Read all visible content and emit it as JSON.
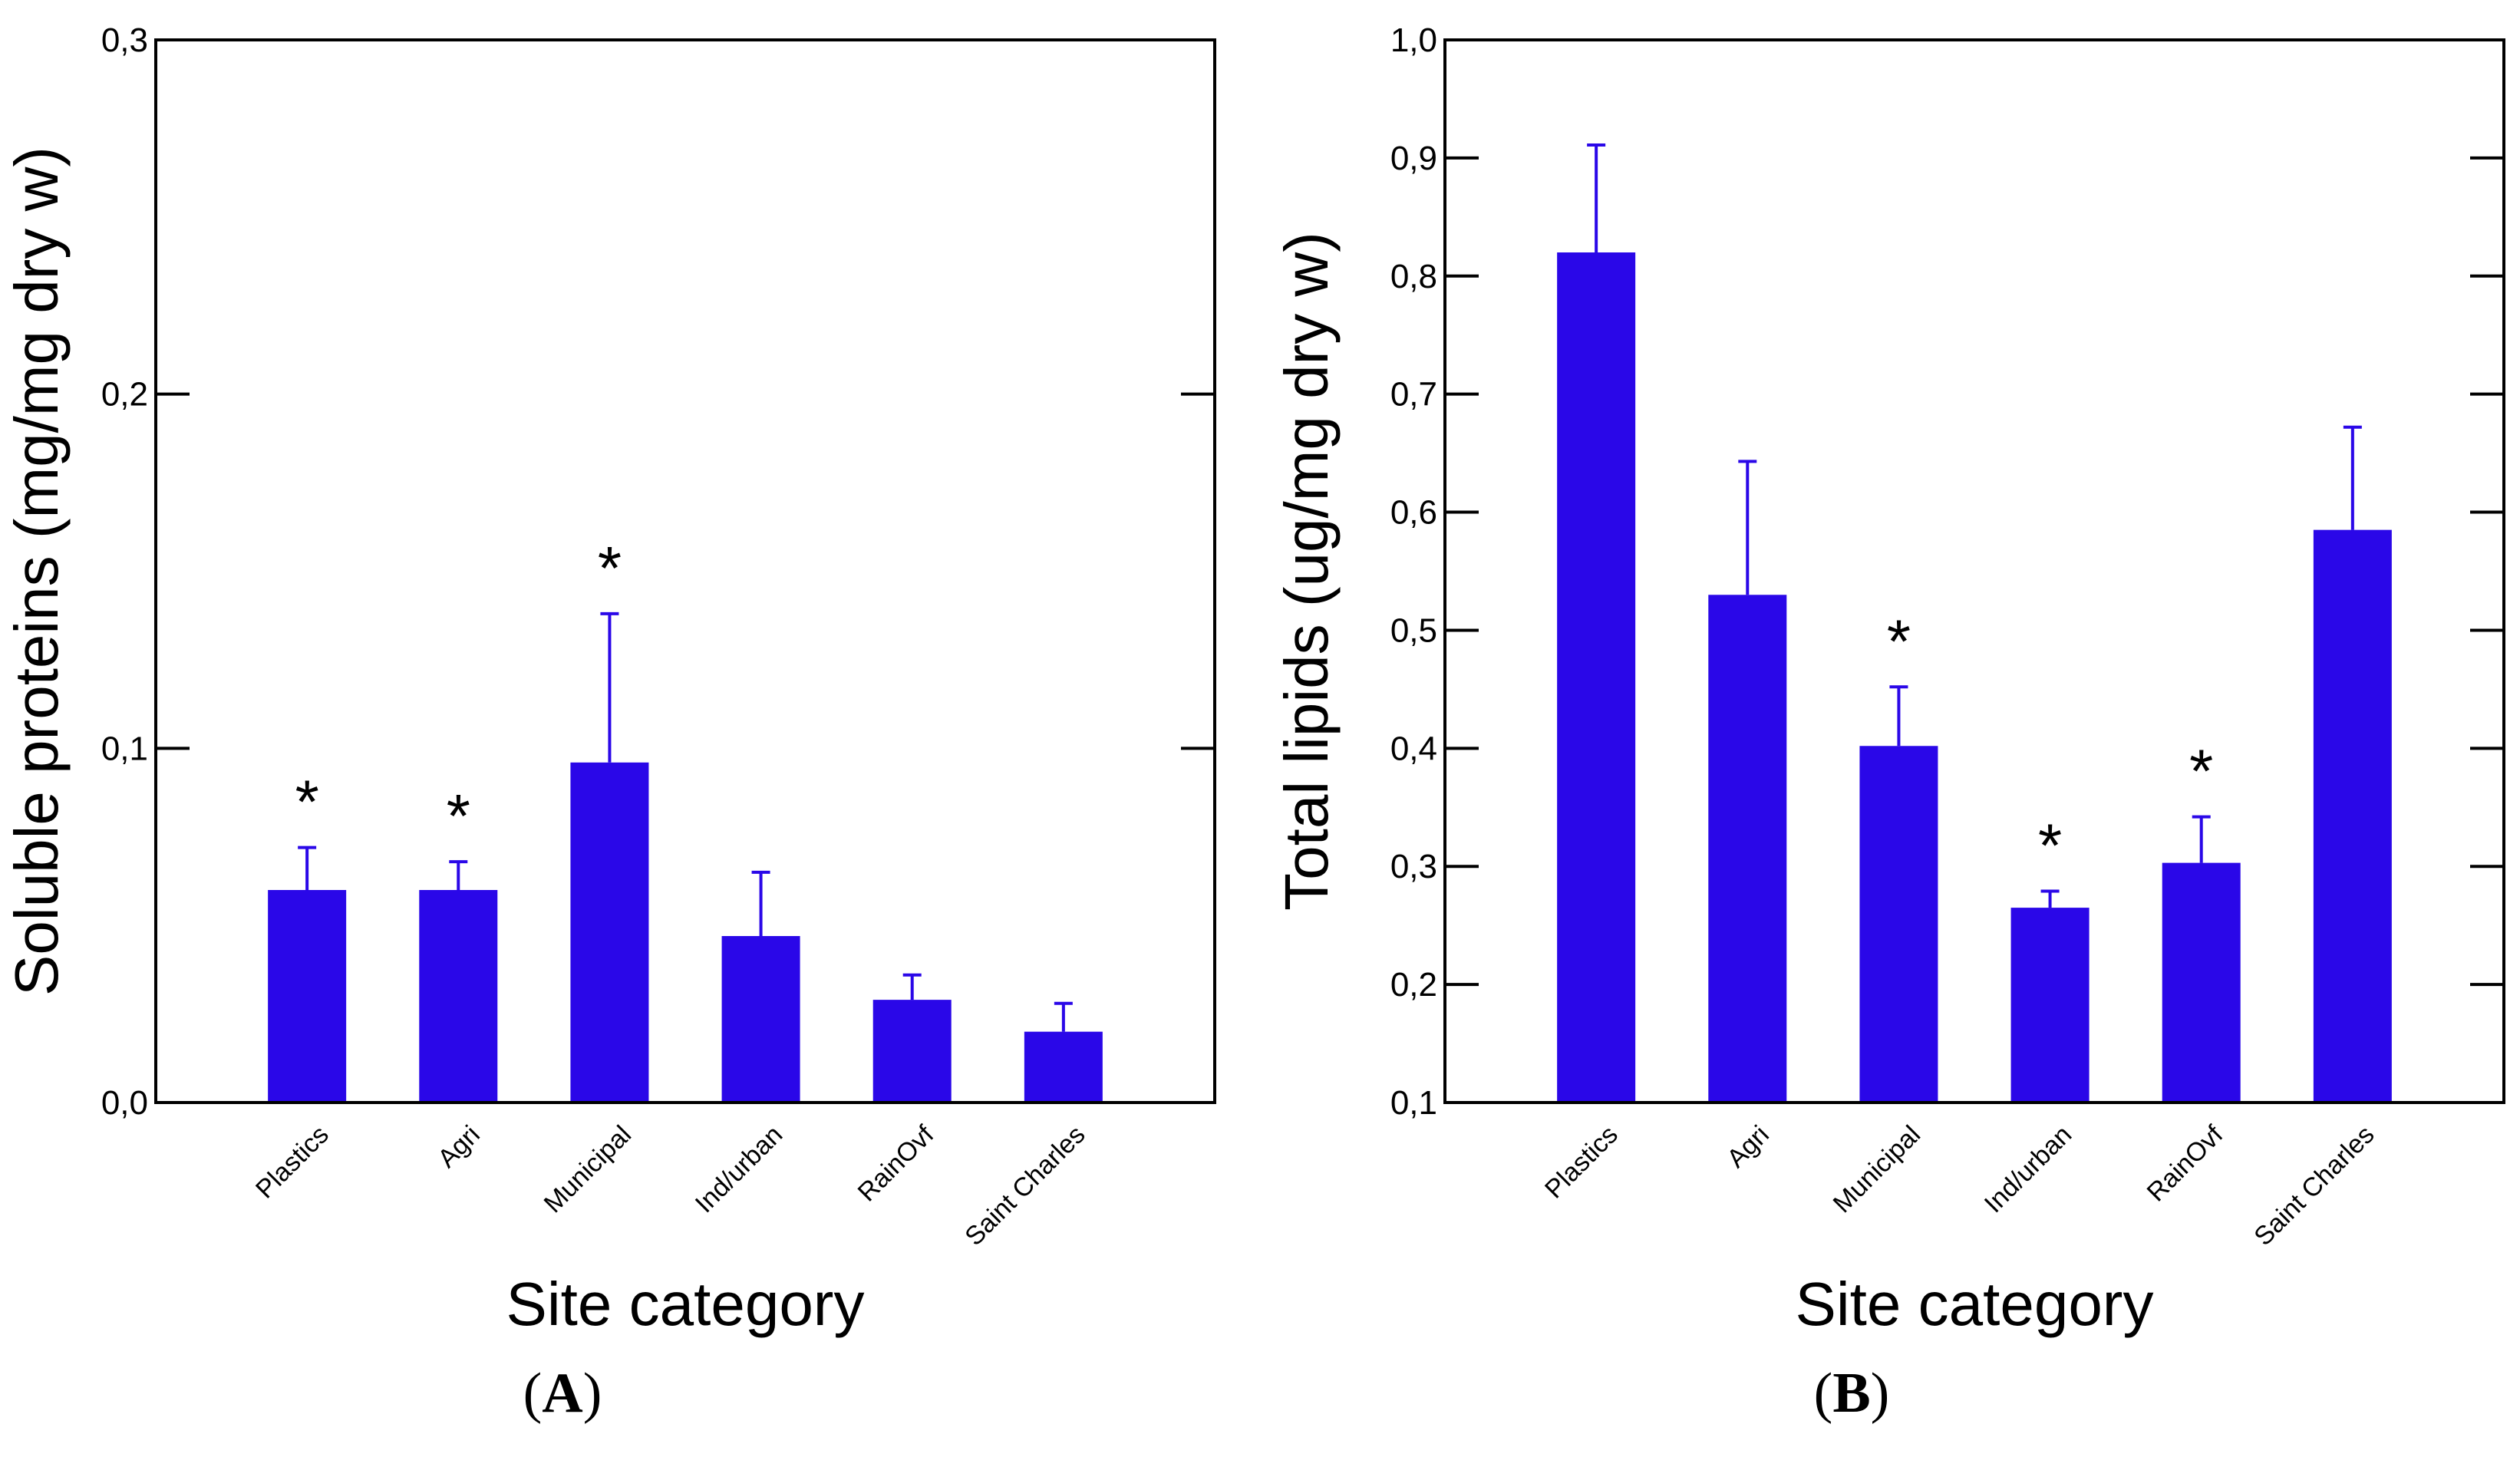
{
  "colors": {
    "bar": "#2a07e8",
    "error": "#2a07e8",
    "axis": "#000000"
  },
  "chart_data": [
    {
      "type": "bar",
      "panel_label": "A",
      "title": "",
      "xlabel": "Site category",
      "ylabel": "Soluble proteins (mg/mg dry w)",
      "ylim": [
        0,
        0.3
      ],
      "yticks": [
        0.0,
        0.1,
        0.2,
        0.3
      ],
      "ytick_labels": [
        "0,0",
        "0,1",
        "0,2",
        "0,3"
      ],
      "categories": [
        "Plastics",
        "Agri",
        "Municipal",
        "Ind/urban",
        "RainOvf",
        "Saint Charles"
      ],
      "values": [
        0.06,
        0.06,
        0.096,
        0.047,
        0.029,
        0.02
      ],
      "errors": [
        0.012,
        0.008,
        0.042,
        0.018,
        0.007,
        0.008
      ],
      "significant": [
        true,
        true,
        true,
        false,
        false,
        false
      ],
      "marker": "*",
      "grid": false
    },
    {
      "type": "bar",
      "panel_label": "B",
      "title": "",
      "xlabel": "Site category",
      "ylabel": "Total lipids (ug/mg dry w)",
      "ylim": [
        0.1,
        1.0
      ],
      "yticks": [
        0.1,
        0.2,
        0.3,
        0.4,
        0.5,
        0.6,
        0.7,
        0.8,
        0.9,
        1.0
      ],
      "ytick_labels": [
        "0,1",
        "0,2",
        "0,3",
        "0,4",
        "0,5",
        "0,6",
        "0,7",
        "0,8",
        "0,9",
        "1,0"
      ],
      "categories": [
        "Plastics",
        "Agri",
        "Municipal",
        "Ind/urban",
        "RainOvf",
        "Saint Charles"
      ],
      "values": [
        0.82,
        0.53,
        0.402,
        0.265,
        0.303,
        0.585
      ],
      "errors": [
        0.091,
        0.113,
        0.05,
        0.014,
        0.039,
        0.087
      ],
      "significant": [
        false,
        false,
        true,
        true,
        true,
        false
      ],
      "marker": "*",
      "grid": false
    }
  ]
}
